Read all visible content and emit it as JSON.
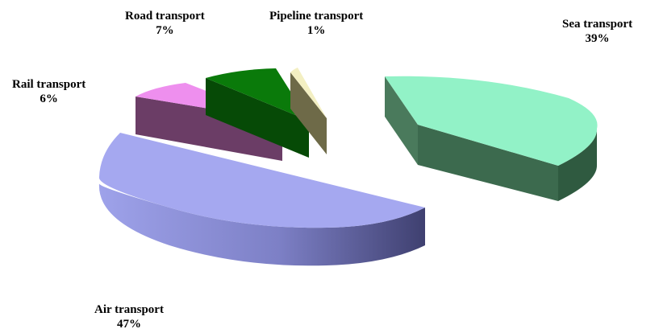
{
  "chart_data": {
    "type": "pie",
    "style": "3d-exploded",
    "categories": [
      "Sea transport",
      "Air transport",
      "Rail transport",
      "Road transport",
      "Pipeline transport"
    ],
    "values": [
      39,
      47,
      6,
      7,
      1
    ],
    "value_labels": [
      "39%",
      "47%",
      "6%",
      "7%",
      "1%"
    ],
    "colors": {
      "Sea transport": {
        "top": "#92f2c7",
        "side": "#3c6b4f"
      },
      "Air transport": {
        "top": "#a5a8f0",
        "side": "#7b7fc4"
      },
      "Rail transport": {
        "top": "#ee8fee",
        "side": "#6b3d66"
      },
      "Road transport": {
        "top": "#0a7a0a",
        "side": "#074d07"
      },
      "Pipeline transport": {
        "top": "#f3efc2",
        "side": "#6e6a48"
      }
    },
    "legend": "none"
  }
}
